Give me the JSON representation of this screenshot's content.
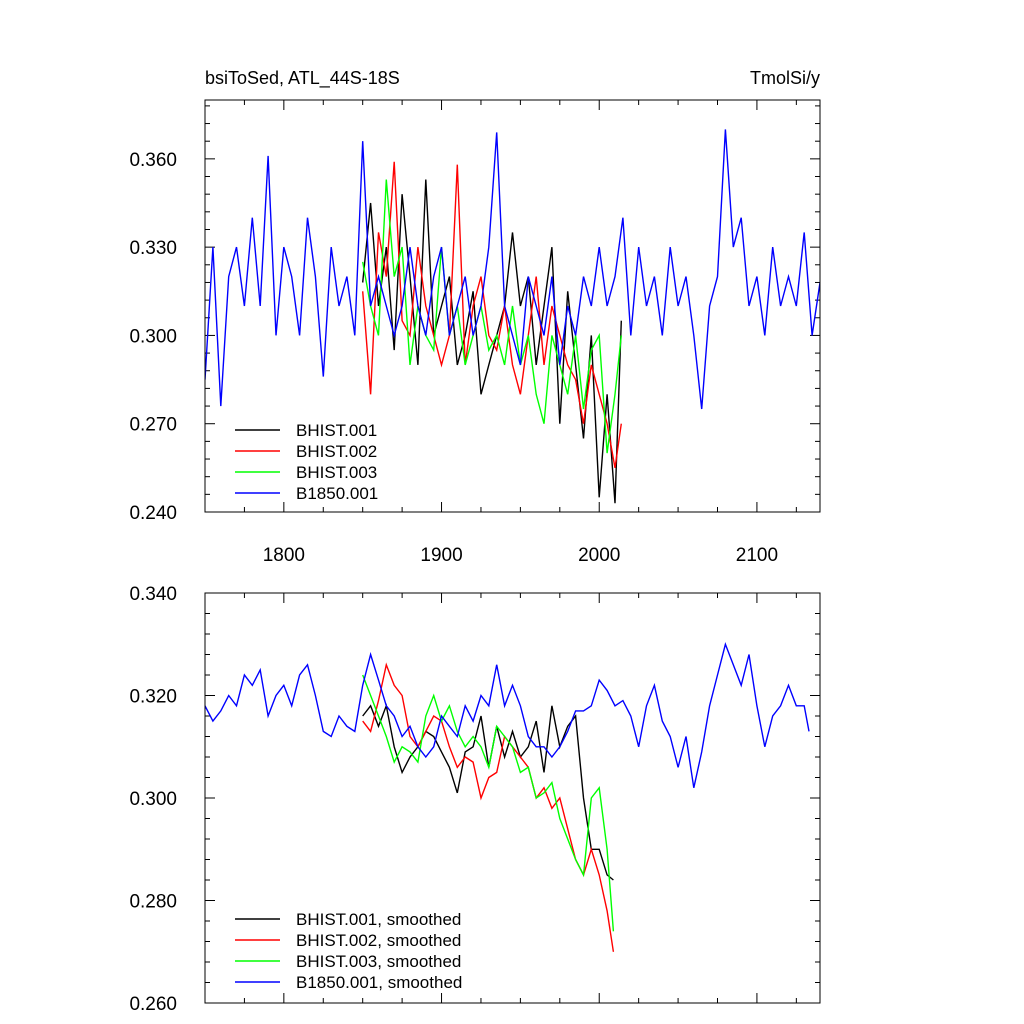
{
  "chart_data": [
    {
      "type": "line",
      "title": "bsiToSed, ATL_44S-18S",
      "units": "TmolSi/y",
      "xlim": [
        1750,
        2140
      ],
      "ylim": [
        0.24,
        0.38
      ],
      "xticks": [
        1800,
        1900,
        2000,
        2100
      ],
      "xtick_labels": [
        "1800",
        "1900",
        "2000",
        "2100"
      ],
      "yticks": [
        0.24,
        0.27,
        0.3,
        0.33,
        0.36
      ],
      "ytick_labels": [
        "0.240",
        "0.270",
        "0.300",
        "0.330",
        "0.360"
      ],
      "legend": "bottom-left",
      "series": [
        {
          "name": "BHIST.001",
          "color": "#000000",
          "x": [
            1850,
            1855,
            1860,
            1865,
            1870,
            1875,
            1880,
            1885,
            1890,
            1895,
            1900,
            1905,
            1910,
            1915,
            1920,
            1925,
            1930,
            1935,
            1940,
            1945,
            1950,
            1955,
            1960,
            1965,
            1970,
            1975,
            1980,
            1985,
            1990,
            1995,
            2000,
            2005,
            2010,
            2014
          ],
          "y": [
            0.318,
            0.345,
            0.31,
            0.33,
            0.295,
            0.348,
            0.32,
            0.29,
            0.353,
            0.3,
            0.31,
            0.32,
            0.29,
            0.3,
            0.315,
            0.28,
            0.29,
            0.3,
            0.31,
            0.335,
            0.31,
            0.32,
            0.29,
            0.31,
            0.33,
            0.27,
            0.315,
            0.29,
            0.265,
            0.3,
            0.245,
            0.28,
            0.243,
            0.305
          ]
        },
        {
          "name": "BHIST.002",
          "color": "#ff0000",
          "x": [
            1850,
            1855,
            1860,
            1865,
            1870,
            1875,
            1880,
            1885,
            1890,
            1895,
            1900,
            1905,
            1910,
            1915,
            1920,
            1925,
            1930,
            1935,
            1940,
            1945,
            1950,
            1955,
            1960,
            1965,
            1970,
            1975,
            1980,
            1985,
            1990,
            1995,
            2000,
            2005,
            2010,
            2014
          ],
          "y": [
            0.315,
            0.28,
            0.335,
            0.32,
            0.359,
            0.305,
            0.3,
            0.33,
            0.31,
            0.3,
            0.29,
            0.3,
            0.358,
            0.29,
            0.31,
            0.32,
            0.3,
            0.295,
            0.31,
            0.29,
            0.28,
            0.3,
            0.32,
            0.29,
            0.31,
            0.3,
            0.29,
            0.285,
            0.27,
            0.29,
            0.28,
            0.27,
            0.255,
            0.27
          ]
        },
        {
          "name": "BHIST.003",
          "color": "#00ff00",
          "x": [
            1850,
            1855,
            1860,
            1865,
            1870,
            1875,
            1880,
            1885,
            1890,
            1895,
            1900,
            1905,
            1910,
            1915,
            1920,
            1925,
            1930,
            1935,
            1940,
            1945,
            1950,
            1955,
            1960,
            1965,
            1970,
            1975,
            1980,
            1985,
            1990,
            1995,
            2000,
            2005,
            2010,
            2014
          ],
          "y": [
            0.325,
            0.31,
            0.3,
            0.353,
            0.32,
            0.33,
            0.29,
            0.31,
            0.3,
            0.295,
            0.33,
            0.3,
            0.31,
            0.29,
            0.3,
            0.31,
            0.295,
            0.3,
            0.29,
            0.31,
            0.29,
            0.3,
            0.28,
            0.27,
            0.3,
            0.29,
            0.28,
            0.3,
            0.275,
            0.295,
            0.3,
            0.26,
            0.28,
            0.3
          ]
        },
        {
          "name": "B1850.001",
          "color": "#0000ff",
          "x": [
            1750,
            1755,
            1760,
            1765,
            1770,
            1775,
            1780,
            1785,
            1790,
            1795,
            1800,
            1805,
            1810,
            1815,
            1820,
            1825,
            1830,
            1835,
            1840,
            1845,
            1850,
            1855,
            1860,
            1865,
            1870,
            1875,
            1880,
            1885,
            1890,
            1895,
            1900,
            1905,
            1910,
            1915,
            1920,
            1925,
            1930,
            1935,
            1940,
            1945,
            1950,
            1955,
            1960,
            1965,
            1970,
            1975,
            1980,
            1985,
            1990,
            1995,
            2000,
            2005,
            2010,
            2015,
            2020,
            2025,
            2030,
            2035,
            2040,
            2045,
            2050,
            2055,
            2060,
            2065,
            2070,
            2075,
            2080,
            2085,
            2090,
            2095,
            2100,
            2105,
            2110,
            2115,
            2120,
            2125,
            2130,
            2135,
            2140
          ],
          "y": [
            0.285,
            0.33,
            0.276,
            0.32,
            0.33,
            0.31,
            0.34,
            0.31,
            0.361,
            0.3,
            0.33,
            0.32,
            0.3,
            0.34,
            0.32,
            0.286,
            0.33,
            0.31,
            0.32,
            0.3,
            0.366,
            0.31,
            0.32,
            0.31,
            0.3,
            0.31,
            0.33,
            0.31,
            0.3,
            0.32,
            0.33,
            0.3,
            0.31,
            0.32,
            0.3,
            0.31,
            0.33,
            0.369,
            0.31,
            0.3,
            0.29,
            0.32,
            0.31,
            0.3,
            0.32,
            0.29,
            0.31,
            0.3,
            0.32,
            0.31,
            0.33,
            0.31,
            0.32,
            0.34,
            0.3,
            0.33,
            0.31,
            0.32,
            0.3,
            0.33,
            0.31,
            0.32,
            0.3,
            0.275,
            0.31,
            0.32,
            0.37,
            0.33,
            0.34,
            0.31,
            0.32,
            0.3,
            0.33,
            0.31,
            0.32,
            0.31,
            0.335,
            0.3,
            0.318
          ]
        }
      ]
    },
    {
      "type": "line",
      "xlim": [
        1750,
        2140
      ],
      "ylim": [
        0.26,
        0.34
      ],
      "xticks": [
        1800,
        1900,
        2000,
        2100
      ],
      "yticks": [
        0.26,
        0.28,
        0.3,
        0.32,
        0.34
      ],
      "ytick_labels": [
        "0.260",
        "0.280",
        "0.300",
        "0.320",
        "0.340"
      ],
      "legend": "bottom-left",
      "series": [
        {
          "name": "BHIST.001, smoothed",
          "color": "#000000",
          "x": [
            1850,
            1855,
            1860,
            1865,
            1870,
            1875,
            1880,
            1885,
            1890,
            1895,
            1900,
            1905,
            1910,
            1915,
            1920,
            1925,
            1930,
            1935,
            1940,
            1945,
            1950,
            1955,
            1960,
            1965,
            1970,
            1975,
            1980,
            1985,
            1990,
            1995,
            2000,
            2005,
            2009
          ],
          "y": [
            0.316,
            0.318,
            0.314,
            0.318,
            0.31,
            0.305,
            0.308,
            0.31,
            0.313,
            0.312,
            0.309,
            0.306,
            0.301,
            0.309,
            0.31,
            0.316,
            0.306,
            0.314,
            0.308,
            0.313,
            0.308,
            0.31,
            0.315,
            0.305,
            0.318,
            0.31,
            0.314,
            0.316,
            0.3,
            0.29,
            0.29,
            0.285,
            0.284
          ]
        },
        {
          "name": "BHIST.002, smoothed",
          "color": "#ff0000",
          "x": [
            1850,
            1855,
            1860,
            1865,
            1870,
            1875,
            1880,
            1885,
            1890,
            1895,
            1900,
            1905,
            1910,
            1915,
            1920,
            1925,
            1930,
            1935,
            1940,
            1945,
            1950,
            1955,
            1960,
            1965,
            1970,
            1975,
            1980,
            1985,
            1990,
            1995,
            2000,
            2005,
            2009
          ],
          "y": [
            0.315,
            0.313,
            0.319,
            0.326,
            0.322,
            0.32,
            0.312,
            0.31,
            0.313,
            0.316,
            0.315,
            0.31,
            0.306,
            0.308,
            0.307,
            0.3,
            0.304,
            0.305,
            0.312,
            0.31,
            0.308,
            0.306,
            0.3,
            0.302,
            0.298,
            0.3,
            0.294,
            0.288,
            0.285,
            0.29,
            0.285,
            0.278,
            0.27
          ]
        },
        {
          "name": "BHIST.003, smoothed",
          "color": "#00ff00",
          "x": [
            1850,
            1855,
            1860,
            1865,
            1870,
            1875,
            1880,
            1885,
            1890,
            1895,
            1900,
            1905,
            1910,
            1915,
            1920,
            1925,
            1930,
            1935,
            1940,
            1945,
            1950,
            1955,
            1960,
            1965,
            1970,
            1975,
            1980,
            1985,
            1990,
            1995,
            2000,
            2005,
            2009
          ],
          "y": [
            0.324,
            0.32,
            0.316,
            0.312,
            0.307,
            0.31,
            0.309,
            0.307,
            0.316,
            0.32,
            0.315,
            0.318,
            0.313,
            0.31,
            0.312,
            0.31,
            0.306,
            0.314,
            0.312,
            0.31,
            0.305,
            0.306,
            0.3,
            0.301,
            0.303,
            0.296,
            0.292,
            0.288,
            0.285,
            0.3,
            0.302,
            0.29,
            0.274
          ]
        },
        {
          "name": "B1850.001, smoothed",
          "color": "#0000ff",
          "x": [
            1750,
            1755,
            1760,
            1765,
            1770,
            1775,
            1780,
            1785,
            1790,
            1795,
            1800,
            1805,
            1810,
            1815,
            1820,
            1825,
            1830,
            1835,
            1840,
            1845,
            1850,
            1855,
            1860,
            1865,
            1870,
            1875,
            1880,
            1885,
            1890,
            1895,
            1900,
            1905,
            1910,
            1915,
            1920,
            1925,
            1930,
            1935,
            1940,
            1945,
            1950,
            1955,
            1960,
            1965,
            1970,
            1975,
            1980,
            1985,
            1990,
            1995,
            2000,
            2005,
            2010,
            2015,
            2020,
            2025,
            2030,
            2035,
            2040,
            2045,
            2050,
            2055,
            2060,
            2065,
            2070,
            2075,
            2080,
            2085,
            2090,
            2095,
            2100,
            2105,
            2110,
            2115,
            2120,
            2125,
            2130,
            2133
          ],
          "y": [
            0.318,
            0.315,
            0.317,
            0.32,
            0.318,
            0.324,
            0.322,
            0.325,
            0.316,
            0.32,
            0.322,
            0.318,
            0.324,
            0.326,
            0.32,
            0.313,
            0.312,
            0.316,
            0.314,
            0.313,
            0.322,
            0.328,
            0.323,
            0.318,
            0.316,
            0.312,
            0.314,
            0.31,
            0.308,
            0.31,
            0.316,
            0.314,
            0.312,
            0.318,
            0.315,
            0.32,
            0.318,
            0.326,
            0.318,
            0.322,
            0.318,
            0.312,
            0.31,
            0.31,
            0.308,
            0.31,
            0.313,
            0.317,
            0.317,
            0.318,
            0.323,
            0.321,
            0.318,
            0.319,
            0.316,
            0.31,
            0.318,
            0.322,
            0.315,
            0.312,
            0.306,
            0.312,
            0.302,
            0.309,
            0.318,
            0.324,
            0.33,
            0.326,
            0.322,
            0.328,
            0.318,
            0.31,
            0.316,
            0.318,
            0.322,
            0.318,
            0.318,
            0.313
          ]
        }
      ]
    }
  ]
}
